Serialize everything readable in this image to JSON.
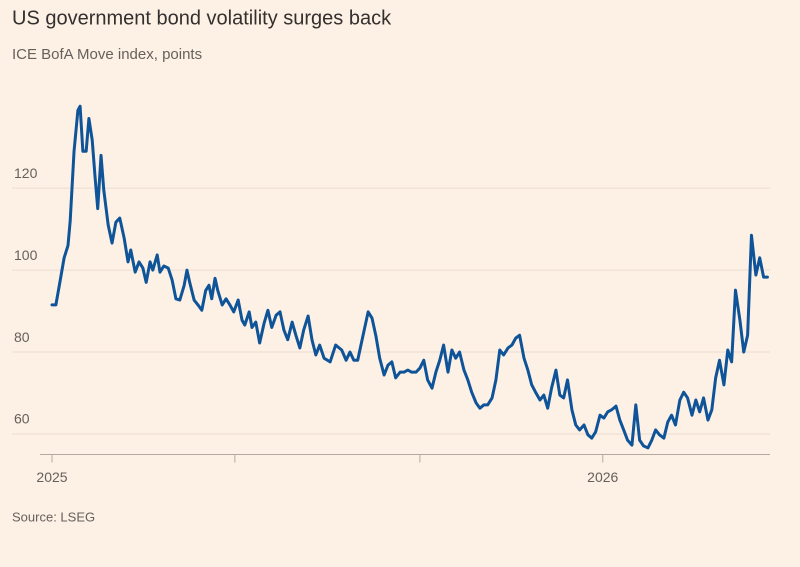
{
  "chart_data": {
    "type": "line",
    "title": "US government bond volatility surges back",
    "subtitle": "ICE BofA Move index, points",
    "source": "Source: LSEG",
    "x": [
      2025.0,
      2025.007,
      2025.015,
      2025.022,
      2025.029,
      2025.033,
      2025.04,
      2025.047,
      2025.051,
      2025.056,
      2025.062,
      2025.067,
      2025.073,
      2025.078,
      2025.083,
      2025.089,
      2025.094,
      2025.102,
      2025.109,
      2025.116,
      2025.123,
      2025.131,
      2025.138,
      2025.143,
      2025.151,
      2025.158,
      2025.165,
      2025.171,
      2025.178,
      2025.183,
      2025.191,
      2025.196,
      2025.203,
      2025.211,
      2025.218,
      2025.225,
      2025.232,
      2025.24,
      2025.245,
      2025.25,
      2025.258,
      2025.265,
      2025.272,
      2025.279,
      2025.285,
      2025.29,
      2025.296,
      2025.301,
      2025.309,
      2025.316,
      2025.323,
      2025.33,
      2025.338,
      2025.345,
      2025.35,
      2025.358,
      2025.363,
      2025.37,
      2025.377,
      2025.385,
      2025.392,
      2025.399,
      2025.407,
      2025.414,
      2025.421,
      2025.428,
      2025.436,
      2025.443,
      2025.45,
      2025.457,
      2025.465,
      2025.472,
      2025.479,
      2025.486,
      2025.494,
      2025.505,
      2025.515,
      2025.526,
      2025.534,
      2025.541,
      2025.548,
      2025.555,
      2025.563,
      2025.574,
      2025.581,
      2025.588,
      2025.595,
      2025.603,
      2025.61,
      2025.617,
      2025.624,
      2025.632,
      2025.639,
      2025.646,
      2025.653,
      2025.661,
      2025.668,
      2025.675,
      2025.682,
      2025.69,
      2025.697,
      2025.704,
      2025.711,
      2025.719,
      2025.726,
      2025.733,
      2025.74,
      2025.748,
      2025.755,
      2025.762,
      2025.77,
      2025.777,
      2025.784,
      2025.791,
      2025.799,
      2025.806,
      2025.813,
      2025.82,
      2025.828,
      2025.835,
      2025.842,
      2025.849,
      2025.857,
      2025.864,
      2025.871,
      2025.878,
      2025.886,
      2025.893,
      2025.9,
      2025.907,
      2025.915,
      2025.922,
      2025.929,
      2025.936,
      2025.944,
      2025.951,
      2025.958,
      2025.966,
      2025.973,
      2025.98,
      2025.987,
      2025.995,
      2026.002,
      2026.009,
      2026.016,
      2026.024,
      2026.031,
      2026.038,
      2026.045,
      2026.053,
      2026.06,
      2026.067,
      2026.074,
      2026.082,
      2026.089,
      2026.096,
      2026.103,
      2026.111,
      2026.118,
      2026.125,
      2026.132,
      2026.14,
      2026.147,
      2026.154,
      2026.162,
      2026.169,
      2026.176,
      2026.183,
      2026.191,
      2026.198,
      2026.205,
      2026.212,
      2026.22,
      2026.227,
      2026.234,
      2026.241,
      2026.249,
      2026.256,
      2026.263,
      2026.27,
      2026.278,
      2026.285,
      2026.292,
      2026.299
    ],
    "series": [
      {
        "name": "ICE BofA Move index",
        "color": "#0f5499",
        "values": [
          91.5,
          91.5,
          97.6,
          103,
          106,
          112,
          129,
          139,
          140,
          129,
          129,
          137,
          131.7,
          123,
          115,
          128,
          119.5,
          111,
          106.6,
          111.7,
          112.7,
          107.8,
          102,
          104.9,
          99.5,
          102,
          100.5,
          97,
          102,
          100,
          103.7,
          99.5,
          101,
          100.5,
          97.6,
          93,
          92.7,
          96.3,
          100,
          97,
          92.7,
          91.5,
          90.2,
          95,
          96.3,
          93,
          98,
          95,
          91.5,
          93,
          91.5,
          89.8,
          92.7,
          87.8,
          86.6,
          89.8,
          86,
          87.3,
          82.2,
          87,
          90.2,
          86,
          89,
          89.8,
          85.4,
          83,
          87.3,
          84,
          81,
          85.4,
          88.8,
          83,
          79.3,
          81.7,
          78.5,
          77.6,
          81.7,
          80.5,
          78,
          80,
          78,
          78,
          83,
          89.8,
          88.3,
          84,
          78.5,
          74.4,
          76.8,
          77.6,
          73.7,
          75.1,
          75.1,
          75.6,
          75.1,
          75.1,
          76.1,
          78,
          73.2,
          71.2,
          75.1,
          78,
          81.7,
          75.1,
          80.5,
          78.5,
          80,
          75.6,
          73.2,
          70.2,
          67.6,
          66.3,
          67.1,
          67.1,
          68.8,
          73.2,
          80.5,
          79.3,
          81,
          81.7,
          83.4,
          84.1,
          78.5,
          75.6,
          72,
          70.2,
          68.3,
          69.5,
          66.3,
          71.2,
          75.6,
          69.5,
          68.8,
          73.2,
          65.9,
          62.2,
          61,
          62.2,
          59.8,
          59,
          60.5,
          64.6,
          63.9,
          65.4,
          65.9,
          66.8,
          63.4,
          61,
          58.5,
          57.3,
          67.1,
          58.5,
          57.1,
          56.6,
          58.5,
          61,
          59.8,
          59,
          62.9,
          64.6,
          62.2,
          68.3,
          70.2,
          68.8,
          64.6,
          68.3,
          65.4,
          68.8,
          63.4,
          65.9,
          73.7,
          78,
          72,
          80.5,
          77.6,
          95.1,
          87.8,
          80,
          84.1,
          108.5,
          98.8,
          103,
          98.3,
          98.3
        ]
      }
    ],
    "xlim": [
      2024.98,
      2026.32
    ],
    "xticks": [
      {
        "value": 2025,
        "label": "2025"
      },
      {
        "value": 2026,
        "label": "2026"
      }
    ],
    "xminor_ticks": [
      2025.332,
      2025.668
    ],
    "ylim": [
      55,
      142
    ],
    "yticks": [
      60,
      80,
      100,
      120
    ],
    "grid": true
  }
}
